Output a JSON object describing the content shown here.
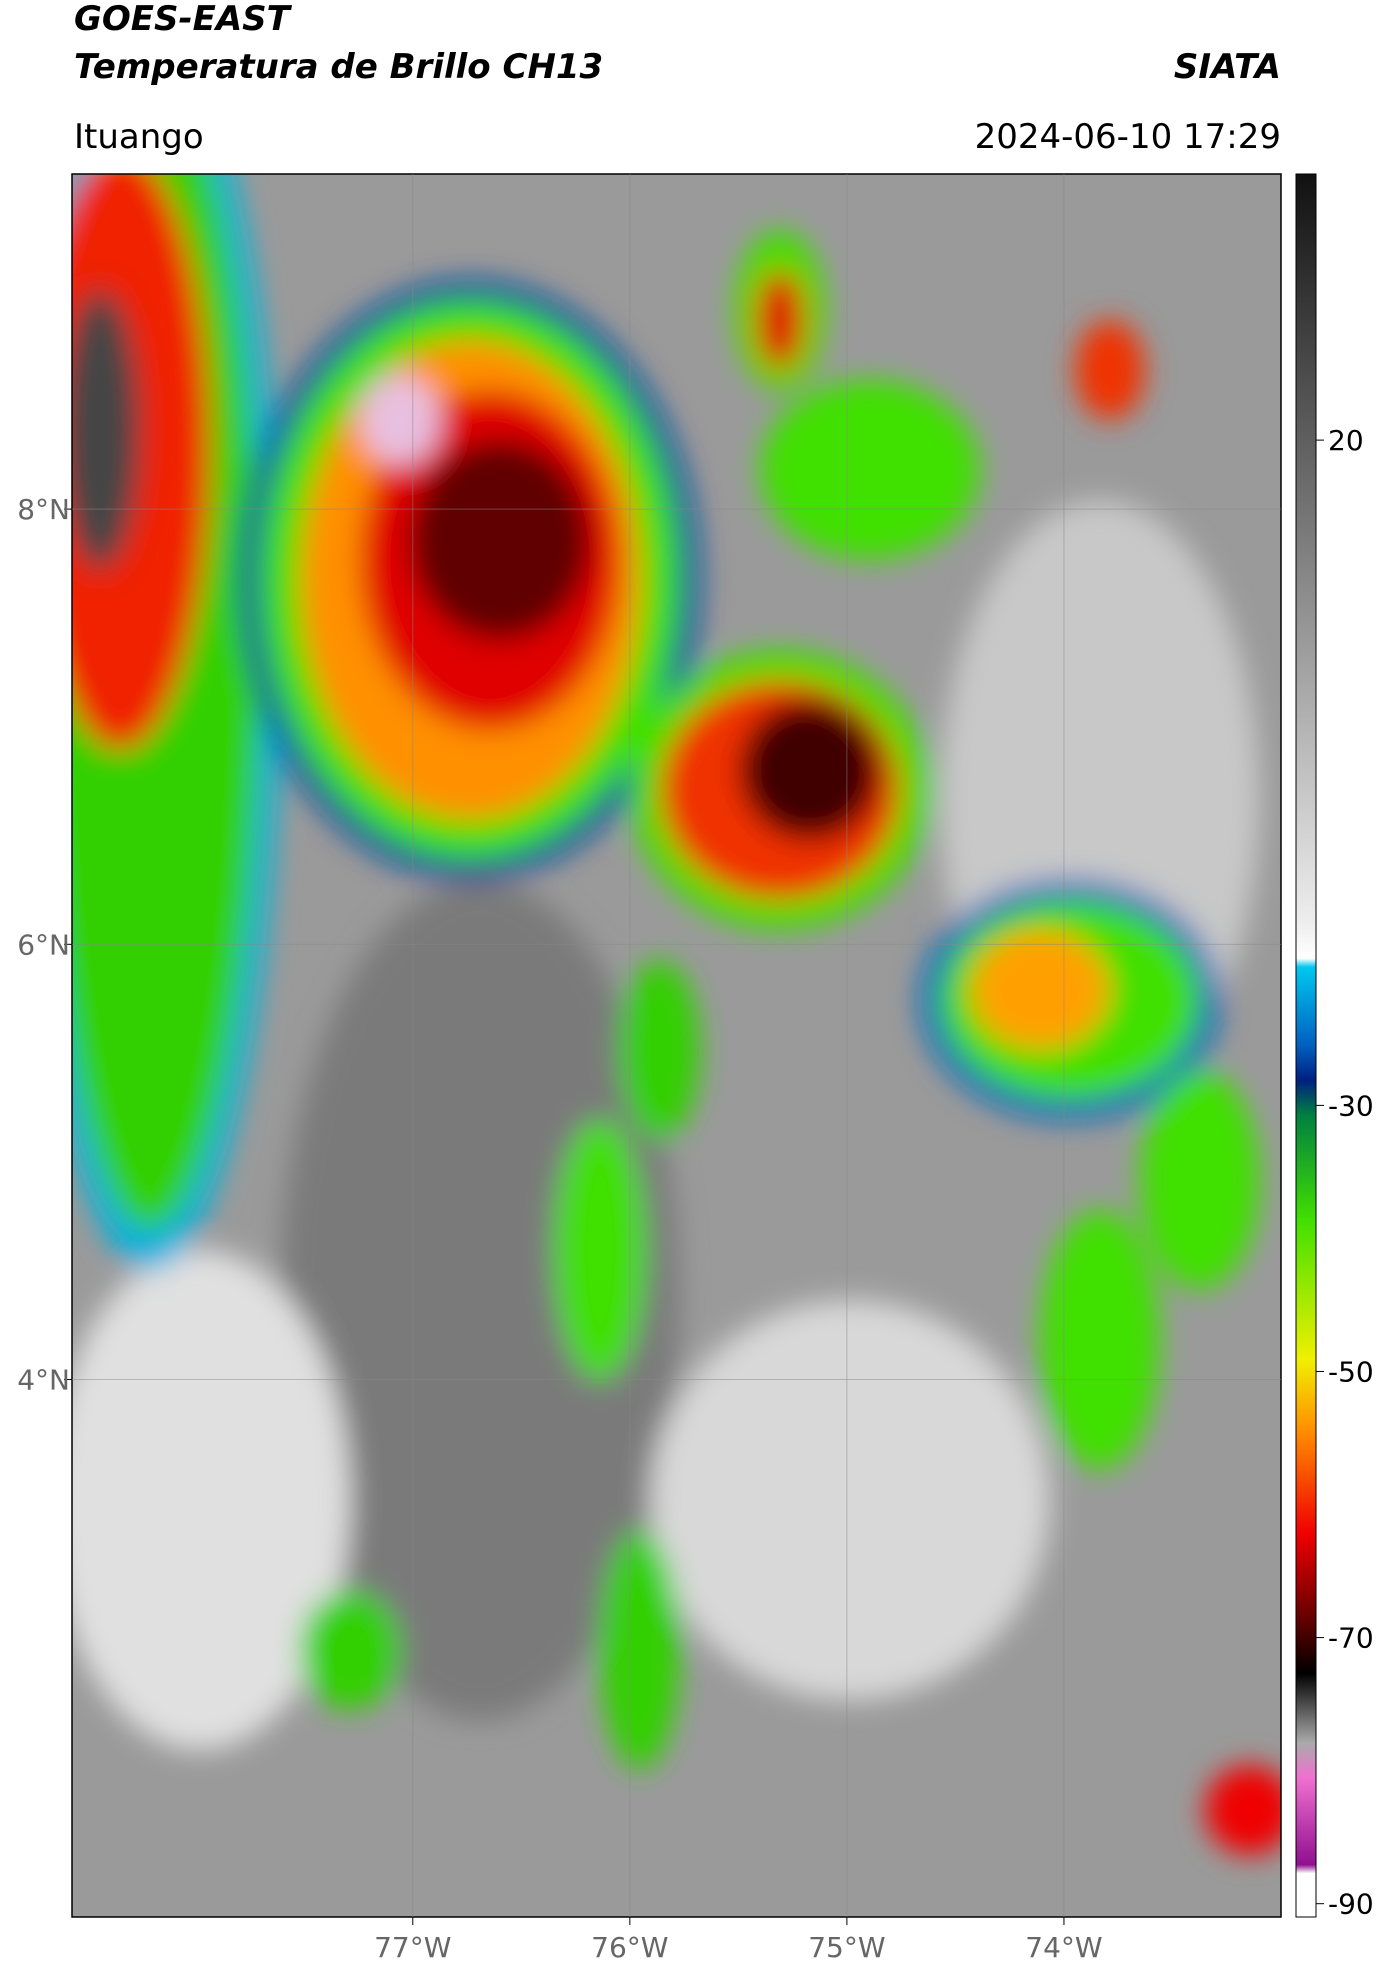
{
  "header": {
    "title": "GOES-EAST",
    "subtitle": "Temperatura de Brillo CH13",
    "source": "SIATA",
    "location": "Ituango",
    "datetime": "2024-06-10 17:29"
  },
  "map": {
    "xlim": [
      -78.57,
      -73.0
    ],
    "ylim": [
      1.53,
      9.54
    ],
    "xticks": [
      {
        "value": -77,
        "label": "77°W"
      },
      {
        "value": -76,
        "label": "76°W"
      },
      {
        "value": -75,
        "label": "75°W"
      },
      {
        "value": -74,
        "label": "74°W"
      }
    ],
    "yticks": [
      {
        "value": 4,
        "label": "4°N"
      },
      {
        "value": 6,
        "label": "6°N"
      },
      {
        "value": 8,
        "label": "8°N"
      }
    ],
    "grid": true
  },
  "colorbar": {
    "lim": [
      -91,
      40
    ],
    "ticks": [
      -90,
      -70,
      -50,
      -30,
      20
    ]
  }
}
